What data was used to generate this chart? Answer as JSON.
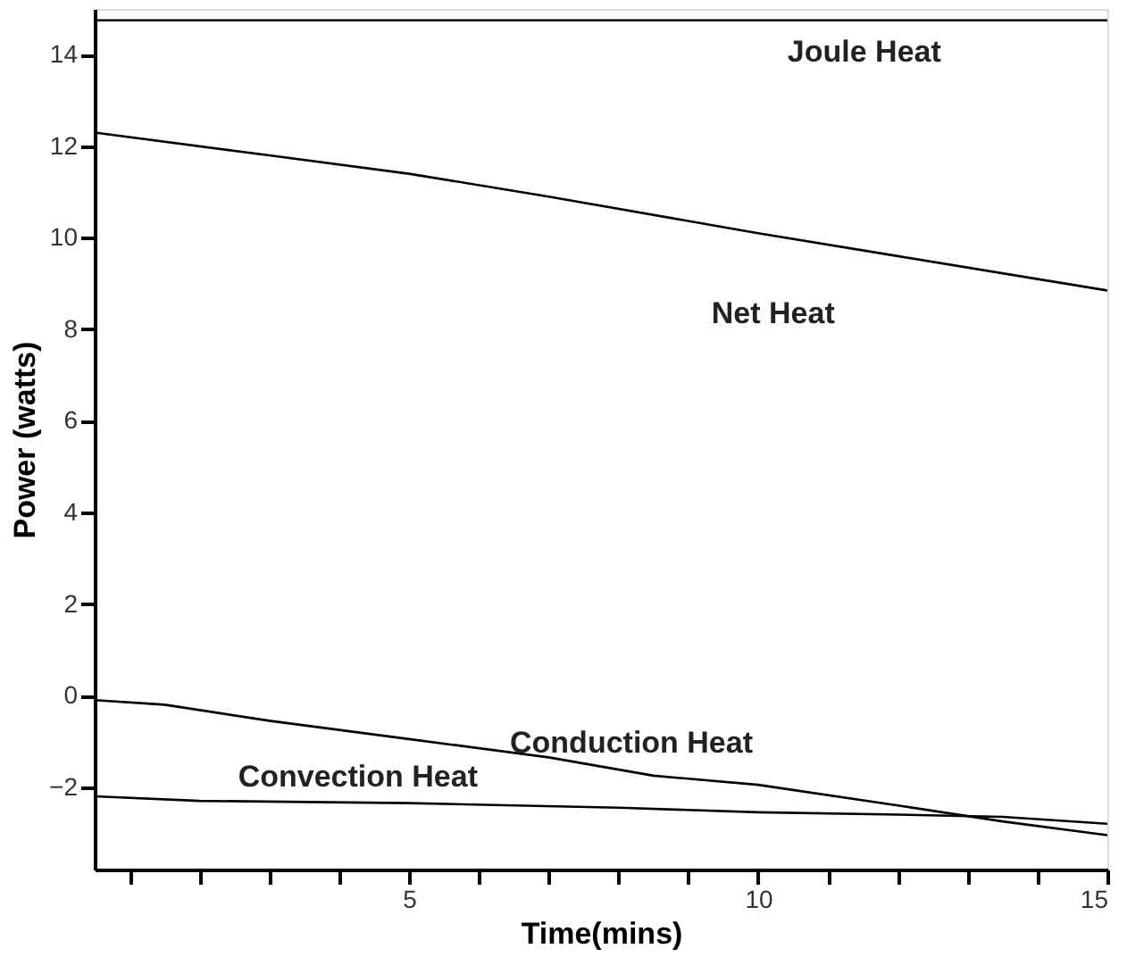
{
  "chart_data": {
    "type": "line",
    "xlabel": "Time(mins)",
    "ylabel": "Power (watts)",
    "xlim": [
      0.5,
      15
    ],
    "ylim": [
      -3.8,
      15
    ],
    "xticks": [
      {
        "value": 1,
        "label": null
      },
      {
        "value": 2,
        "label": null
      },
      {
        "value": 3,
        "label": null
      },
      {
        "value": 4,
        "label": null
      },
      5,
      {
        "value": 6,
        "label": null
      },
      {
        "value": 7,
        "label": null
      },
      {
        "value": 8,
        "label": null
      },
      {
        "value": 9,
        "label": null
      },
      10,
      {
        "value": 11,
        "label": null
      },
      {
        "value": 12,
        "label": null
      },
      {
        "value": 13,
        "label": null
      },
      {
        "value": 14,
        "label": null
      },
      15
    ],
    "yticks": [
      -2,
      0,
      2,
      4,
      6,
      8,
      10,
      12,
      14
    ],
    "grid": false,
    "marker": "none",
    "line_style": "solid",
    "series": [
      {
        "name": "Joule Heat",
        "color": "#000000",
        "x": [
          0.5,
          15
        ],
        "values": [
          14.75,
          14.75
        ]
      },
      {
        "name": "Net Heat",
        "color": "#000000",
        "x": [
          0.5,
          3,
          5,
          7,
          10,
          12,
          15
        ],
        "values": [
          12.3,
          11.8,
          11.4,
          10.9,
          10.1,
          9.6,
          8.85
        ]
      },
      {
        "name": "Conduction Heat",
        "color": "#000000",
        "x": [
          0.5,
          1.5,
          3,
          5,
          7,
          8.5,
          10,
          12,
          13.5,
          15
        ],
        "values": [
          -0.1,
          -0.2,
          -0.55,
          -0.95,
          -1.35,
          -1.75,
          -1.95,
          -2.4,
          -2.75,
          -3.05
        ]
      },
      {
        "name": "Convection Heat",
        "color": "#000000",
        "x": [
          0.5,
          2,
          5,
          8,
          10,
          12,
          13.5,
          15
        ],
        "values": [
          -2.2,
          -2.3,
          -2.35,
          -2.45,
          -2.55,
          -2.6,
          -2.65,
          -2.8
        ]
      }
    ]
  }
}
